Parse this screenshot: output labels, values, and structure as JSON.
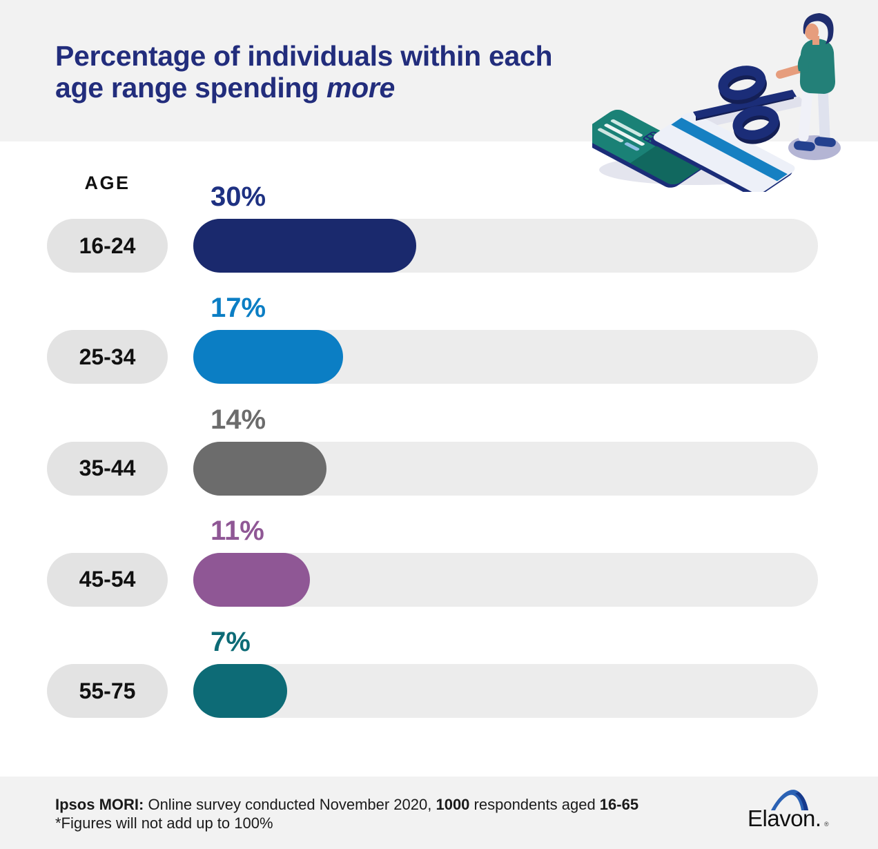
{
  "title": {
    "line1": "Percentage of individuals within each",
    "line2_prefix": "age range spending ",
    "line2_emphasis": "more"
  },
  "chart": {
    "column_header": "AGE",
    "track_color": "#ececec",
    "pill_color": "#e3e3e3",
    "rows": [
      {
        "age": "16-24",
        "value": 30,
        "label": "30%",
        "bar_color": "#1a296d",
        "label_color": "#1e3182"
      },
      {
        "age": "25-34",
        "value": 17,
        "label": "17%",
        "bar_color": "#0b7ec4",
        "label_color": "#0b7ec4"
      },
      {
        "age": "35-44",
        "value": 14,
        "label": "14%",
        "bar_color": "#6c6c6c",
        "label_color": "#6c6c6c"
      },
      {
        "age": "45-54",
        "value": 11,
        "label": "11%",
        "bar_color": "#8f5795",
        "label_color": "#8f5795"
      },
      {
        "age": "55-75",
        "value": 7,
        "label": "7%",
        "bar_color": "#0d6b76",
        "label_color": "#0d6b76"
      }
    ]
  },
  "chart_data": {
    "type": "bar",
    "orientation": "horizontal",
    "title": "Percentage of individuals within each age range spending more",
    "categories": [
      "16-24",
      "25-34",
      "35-44",
      "45-54",
      "55-75"
    ],
    "values": [
      30,
      17,
      14,
      11,
      7
    ],
    "data_labels": [
      "30%",
      "17%",
      "14%",
      "11%",
      "7%"
    ],
    "bar_colors": [
      "#1a296d",
      "#0b7ec4",
      "#6c6c6c",
      "#8f5795",
      "#0d6b76"
    ],
    "xlabel": "",
    "ylabel": "AGE",
    "grid": false,
    "legend": false,
    "source": "Ipsos MORI: Online survey conducted November 2020, 1000 respondents aged 16-65",
    "note": "*Figures will not add up to 100%"
  },
  "footer": {
    "source_bold": "Ipsos MORI:",
    "source_text1": " Online survey conducted November 2020, ",
    "respondents": "1000",
    "source_text2": " respondents aged ",
    "aged": "16-65",
    "note": "*Figures will not add up to 100%",
    "logo_text": "Elavon.",
    "logo_reg": "®"
  },
  "illustration": {
    "name": "person-with-percent-sign-and-payment-cards-illustration",
    "alt": "Person standing beside a large percent symbol and two payment cards"
  },
  "colors": {
    "background": "#ffffff",
    "header_band": "#f2f2f2",
    "footer_band": "#f2f2f2",
    "title_navy": "#222d7c",
    "track_gray": "#ececec",
    "pill_gray": "#e3e3e3",
    "text_black": "#1a1a1a",
    "illustration_navy": "#1b2d78",
    "illustration_teal": "#238078",
    "logo_blue": "#2b62b4"
  }
}
